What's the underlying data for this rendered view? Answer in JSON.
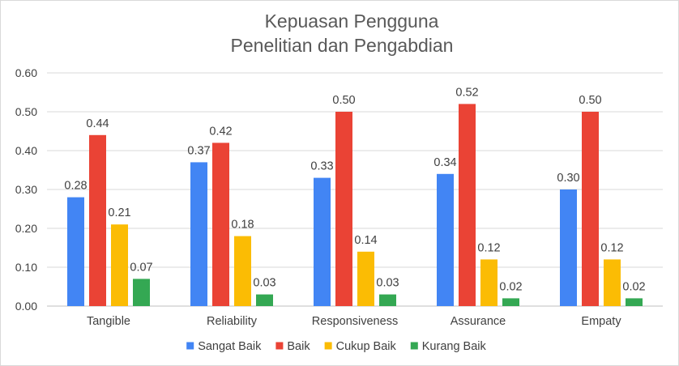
{
  "chart_data": {
    "type": "bar",
    "title": [
      "Kepuasan Pengguna",
      "Penelitian dan Pengabdian"
    ],
    "categories": [
      "Tangible",
      "Reliability",
      "Responsiveness",
      "Assurance",
      "Empaty"
    ],
    "series": [
      {
        "name": "Sangat Baik",
        "color": "#4285F4",
        "values": [
          0.28,
          0.37,
          0.33,
          0.34,
          0.3
        ]
      },
      {
        "name": "Baik",
        "color": "#EA4335",
        "values": [
          0.44,
          0.42,
          0.5,
          0.52,
          0.5
        ]
      },
      {
        "name": "Cukup Baik",
        "color": "#FBBC04",
        "values": [
          0.21,
          0.18,
          0.14,
          0.12,
          0.12
        ]
      },
      {
        "name": "Kurang Baik",
        "color": "#34A853",
        "values": [
          0.07,
          0.03,
          0.03,
          0.02,
          0.02
        ]
      }
    ],
    "ylim": [
      0,
      0.6
    ],
    "yticks": [
      "0.00",
      "0.10",
      "0.20",
      "0.30",
      "0.40",
      "0.50",
      "0.60"
    ],
    "data_labels": [
      [
        "0.28",
        "0.37",
        "0.33",
        "0.34",
        "0.30"
      ],
      [
        "0.44",
        "0.42",
        "0.50",
        "0.52",
        "0.50"
      ],
      [
        "0.21",
        "0.18",
        "0.14",
        "0.12",
        "0.12"
      ],
      [
        "0.07",
        "0.03",
        "0.03",
        "0.02",
        "0.02"
      ]
    ],
    "grid": true,
    "legend": "bottom",
    "xlabel": "",
    "ylabel": ""
  }
}
